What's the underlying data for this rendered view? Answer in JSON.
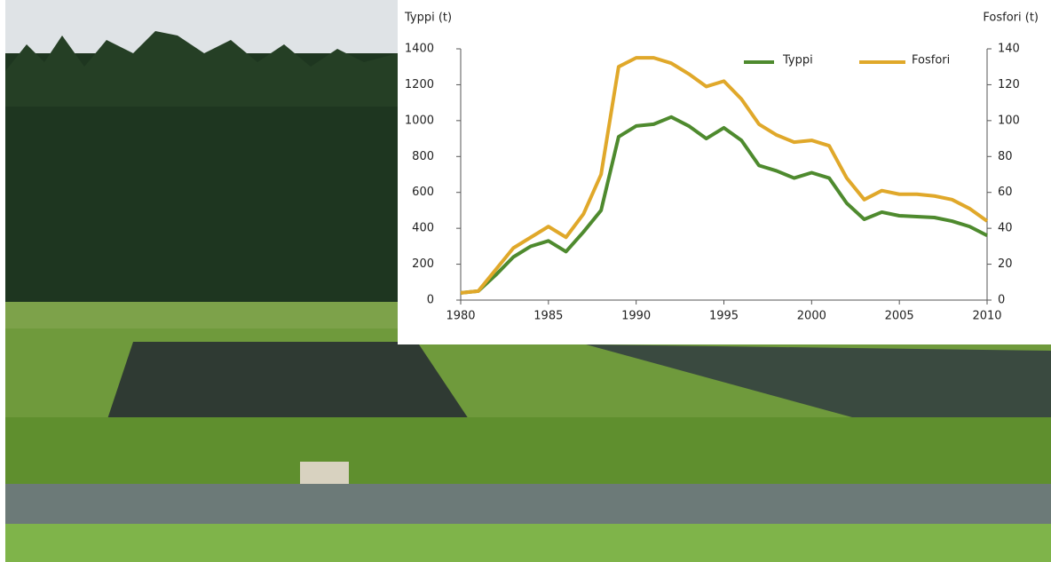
{
  "chart_data": {
    "type": "line",
    "y_label": "Typpi (t)",
    "y2_label": "Fosfori (t)",
    "x": [
      1980,
      1981,
      1982,
      1983,
      1984,
      1985,
      1986,
      1987,
      1988,
      1989,
      1990,
      1991,
      1992,
      1993,
      1994,
      1995,
      1996,
      1997,
      1998,
      1999,
      2000,
      2001,
      2002,
      2003,
      2004,
      2005,
      2006,
      2007,
      2008,
      2009,
      2010
    ],
    "series": [
      {
        "name": "Typpi",
        "color": "#4e8a2e",
        "values": [
          40,
          50,
          140,
          240,
          300,
          330,
          270,
          380,
          500,
          910,
          970,
          980,
          1020,
          970,
          900,
          960,
          890,
          750,
          720,
          680,
          710,
          680,
          540,
          450,
          490,
          470,
          465,
          460,
          440,
          410,
          360
        ]
      },
      {
        "name": "Fosfori",
        "color": "#e0a82a",
        "axis": "y2",
        "values": [
          4,
          5,
          17,
          29,
          35,
          41,
          35,
          48,
          70,
          130,
          135,
          135,
          132,
          126,
          119,
          122,
          112,
          98,
          92,
          88,
          89,
          86,
          68,
          56,
          61,
          59,
          59,
          58,
          56,
          51,
          44
        ]
      }
    ],
    "xlim": [
      1980,
      2010
    ],
    "xticks": [
      1980,
      1985,
      1990,
      1995,
      2000,
      2005,
      2010
    ],
    "ylim": [
      0,
      1400
    ],
    "yticks": [
      0,
      200,
      400,
      600,
      800,
      1000,
      1200,
      1400
    ],
    "y2lim": [
      0,
      140
    ],
    "y2ticks": [
      0,
      20,
      40,
      60,
      80,
      100,
      120,
      140
    ],
    "grid": false
  }
}
